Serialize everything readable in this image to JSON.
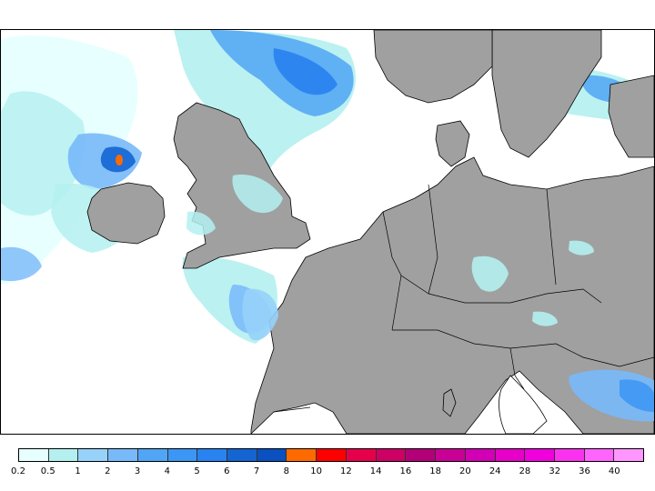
{
  "map": {
    "land_color": "#a0a0a0",
    "sea_color": "#ffffff",
    "coastline_color": "#000000",
    "precip_colors": [
      "#e6ffff",
      "#b4f0f0",
      "#96d2fa",
      "#78b9fa",
      "#50a5f5",
      "#3c96f5",
      "#2882f0",
      "#1464d2",
      "#ff6a00"
    ],
    "hotspot_labels": [
      "precip-patch-north-sea",
      "precip-patch-scotland-orange",
      "precip-patch-bay-of-biscay",
      "precip-patch-adriatic",
      "precip-patch-baltic"
    ]
  },
  "legend": {
    "colors": [
      "#e6ffff",
      "#b4f0f0",
      "#96d2fa",
      "#78b9fa",
      "#50a5f5",
      "#3c96f5",
      "#2882f0",
      "#1464d2",
      "#0a50bf",
      "#ff6a00",
      "#ff0000",
      "#e6004b",
      "#cd0064",
      "#b40078",
      "#c80096",
      "#d200b4",
      "#e600c8",
      "#f000dc",
      "#fa32f0",
      "#ff64ff",
      "#ff96ff"
    ],
    "labels": [
      "0.2",
      "0.5",
      "1",
      "2",
      "3",
      "4",
      "5",
      "6",
      "7",
      "8",
      "10",
      "12",
      "14",
      "16",
      "18",
      "20",
      "24",
      "28",
      "32",
      "36",
      "40"
    ]
  }
}
